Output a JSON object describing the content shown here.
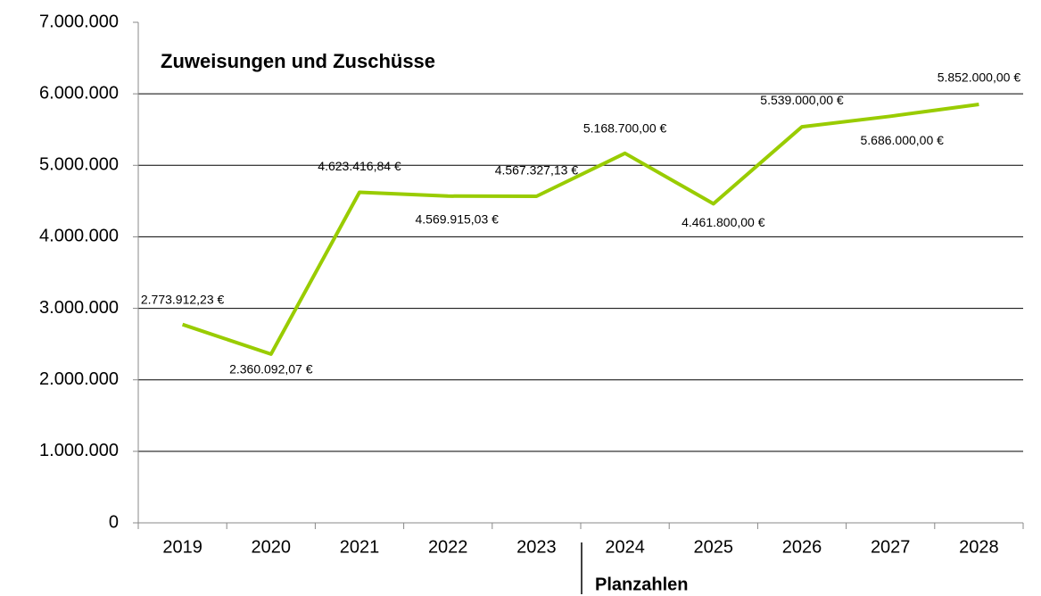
{
  "chart_data": {
    "type": "line",
    "title": "Zuweisungen und Zuschüsse",
    "annotation": "Planzahlen",
    "categories": [
      "2019",
      "2020",
      "2021",
      "2022",
      "2023",
      "2024",
      "2025",
      "2026",
      "2027",
      "2028"
    ],
    "series": [
      {
        "name": "Zuweisungen und Zuschüsse",
        "color": "#99cc00",
        "values": [
          2773912.23,
          2360092.07,
          4623416.84,
          4569915.03,
          4567327.13,
          5168700.0,
          4461800.0,
          5539000.0,
          5686000.0,
          5852000.0
        ],
        "value_labels": [
          "2.773.912,23 €",
          "2.360.092,07 €",
          "4.623.416,84 €",
          "4.569.915,03 €",
          "4.567.327,13 €",
          "5.168.700,00 €",
          "4.461.800,00 €",
          "5.539.000,00 €",
          "5.686.000,00 €",
          "5.852.000,00 €"
        ]
      }
    ],
    "ylim": [
      0,
      7000000
    ],
    "yticks": [
      0,
      {
        "value": 1000000,
        "label": "1.000.000"
      },
      {
        "value": 2000000,
        "label": "2.000.000"
      },
      {
        "value": 3000000,
        "label": "3.000.000"
      },
      {
        "value": 4000000,
        "label": "4.000.000"
      },
      {
        "value": 5000000,
        "label": "5.000.000"
      },
      {
        "value": 6000000,
        "label": "6.000.000"
      },
      {
        "value": 7000000,
        "label": "7.000.000"
      }
    ],
    "grid": true
  }
}
